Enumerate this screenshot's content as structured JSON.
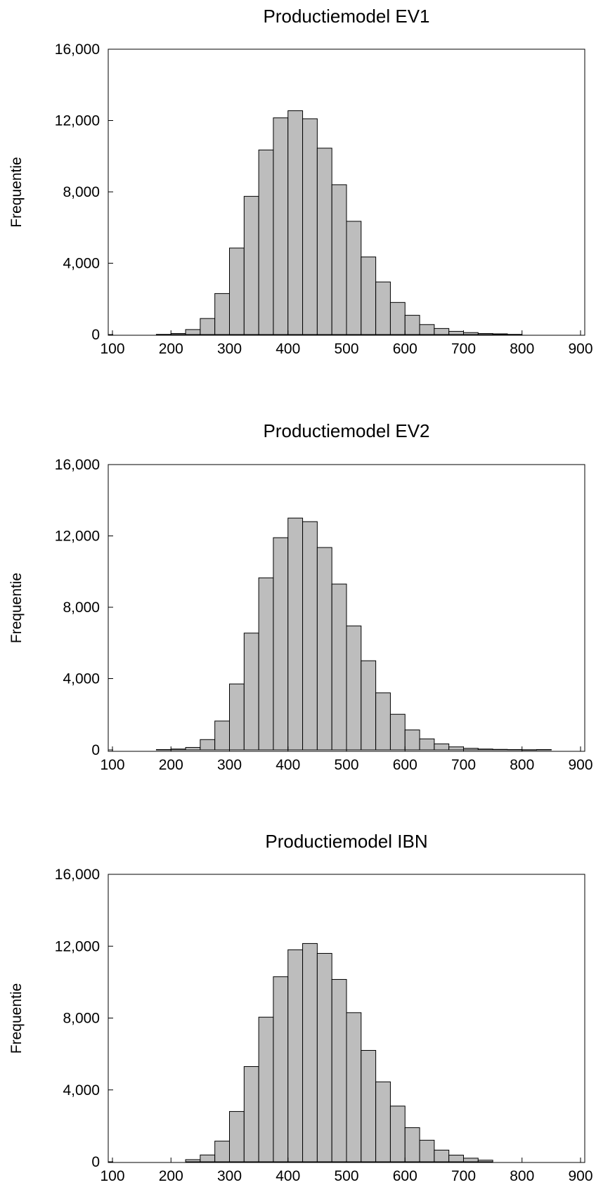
{
  "chart_data": [
    {
      "type": "bar",
      "title": "Productiemodel EV1",
      "ylabel": "Frequentie",
      "xlabel": "",
      "xlim": [
        100,
        900
      ],
      "ylim": [
        0,
        16000
      ],
      "x_ticks": [
        "100",
        "200",
        "300",
        "400",
        "500",
        "600",
        "700",
        "800",
        "900"
      ],
      "y_ticks": [
        "0",
        "4,000",
        "8,000",
        "12,000",
        "16,000"
      ],
      "bin_width": 25,
      "bins_start": [
        175,
        200,
        225,
        250,
        275,
        300,
        325,
        350,
        375,
        400,
        425,
        450,
        475,
        500,
        525,
        550,
        575,
        600,
        625,
        650,
        675,
        700,
        725,
        750,
        775
      ],
      "values": [
        10,
        60,
        280,
        900,
        2300,
        4850,
        7750,
        10350,
        12150,
        12550,
        12100,
        10450,
        8400,
        6350,
        4350,
        2950,
        1800,
        1080,
        560,
        340,
        180,
        110,
        60,
        40,
        10
      ],
      "grid": false
    },
    {
      "type": "bar",
      "title": "Productiemodel EV2",
      "ylabel": "Frequentie",
      "xlabel": "",
      "xlim": [
        100,
        900
      ],
      "ylim": [
        0,
        16000
      ],
      "x_ticks": [
        "100",
        "200",
        "300",
        "400",
        "500",
        "600",
        "700",
        "800",
        "900"
      ],
      "y_ticks": [
        "0",
        "4,000",
        "8,000",
        "12,000",
        "16,000"
      ],
      "bin_width": 25,
      "bins_start": [
        175,
        200,
        225,
        250,
        275,
        300,
        325,
        350,
        375,
        400,
        425,
        450,
        475,
        500,
        525,
        550,
        575,
        600,
        625,
        650,
        675,
        700,
        725,
        750,
        775,
        800,
        825
      ],
      "values": [
        20,
        50,
        140,
        580,
        1620,
        3700,
        6550,
        9650,
        11900,
        13000,
        12800,
        11350,
        9300,
        6950,
        5000,
        3200,
        2000,
        1120,
        620,
        340,
        170,
        90,
        50,
        30,
        20,
        10,
        20
      ],
      "grid": false
    },
    {
      "type": "bar",
      "title": "Productiemodel IBN",
      "ylabel": "Frequentie",
      "xlabel": "",
      "xlim": [
        100,
        900
      ],
      "ylim": [
        0,
        16000
      ],
      "x_ticks": [
        "100",
        "200",
        "300",
        "400",
        "500",
        "600",
        "700",
        "800",
        "900"
      ],
      "y_ticks": [
        "0",
        "4,000",
        "8,000",
        "12,000",
        "16,000"
      ],
      "bin_width": 25,
      "bins_start": [
        225,
        250,
        275,
        300,
        325,
        350,
        375,
        400,
        425,
        450,
        475,
        500,
        525,
        550,
        575,
        600,
        625,
        650,
        675,
        700,
        725
      ],
      "values": [
        120,
        380,
        1150,
        2800,
        5300,
        8050,
        10300,
        11800,
        12150,
        11600,
        10150,
        8300,
        6200,
        4450,
        3100,
        1900,
        1200,
        650,
        370,
        200,
        90
      ],
      "grid": false
    }
  ]
}
